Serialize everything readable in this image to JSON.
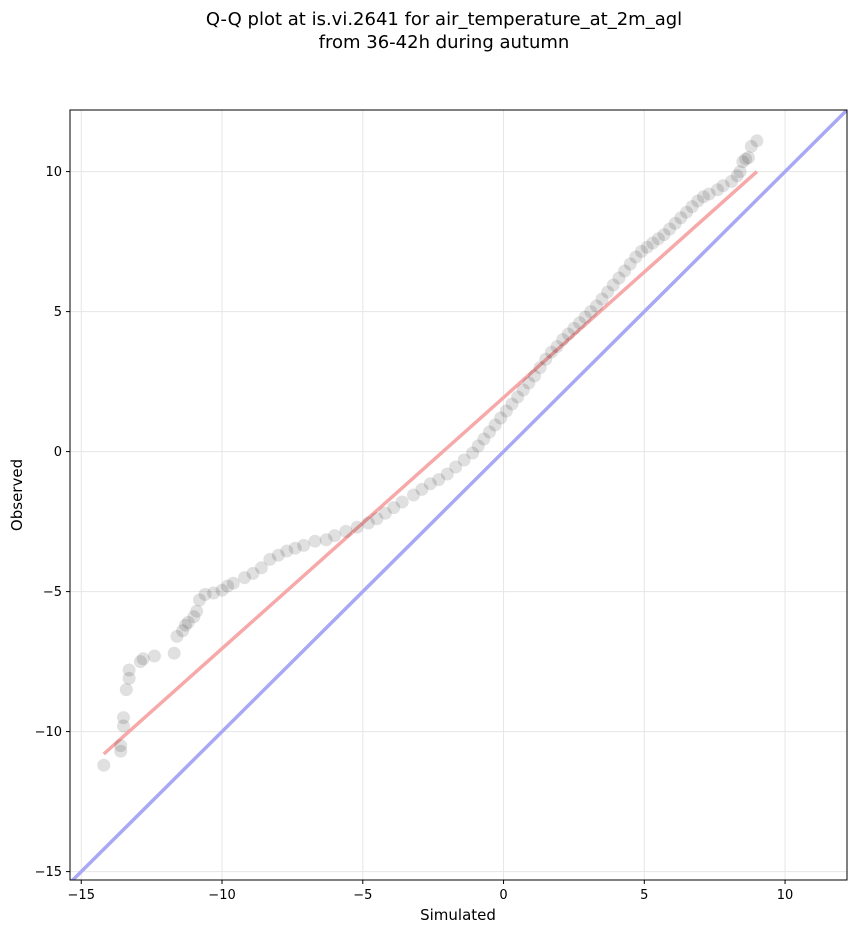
{
  "chart_data": {
    "type": "scatter",
    "title": "Q-Q plot at is.vi.2641 for air_temperature_at_2m_agl",
    "subtitle": "from 36-42h during autumn",
    "xlabel": "Simulated",
    "ylabel": "Observed",
    "xlim": [
      -15.4,
      12.2
    ],
    "ylim": [
      -15.3,
      12.2
    ],
    "xticks": [
      -15,
      -10,
      -5,
      0,
      5,
      10
    ],
    "yticks": [
      -15,
      -10,
      -5,
      0,
      5,
      10
    ],
    "xtick_labels": [
      "−15",
      "−10",
      "−5",
      "0",
      "5",
      "10"
    ],
    "ytick_labels": [
      "−15",
      "−10",
      "−5",
      "0",
      "5",
      "10"
    ],
    "grid": true,
    "point_color": "#000000",
    "point_alpha": 0.12,
    "series": [
      {
        "values": [
          [
            -14.2,
            -11.2
          ],
          [
            -13.6,
            -10.7
          ],
          [
            -13.6,
            -10.5
          ],
          [
            -13.5,
            -9.8
          ],
          [
            -13.5,
            -9.5
          ],
          [
            -13.4,
            -8.5
          ],
          [
            -13.3,
            -8.1
          ],
          [
            -13.3,
            -7.8
          ],
          [
            -12.9,
            -7.5
          ],
          [
            -12.8,
            -7.4
          ],
          [
            -12.4,
            -7.3
          ],
          [
            -11.7,
            -7.2
          ],
          [
            -11.6,
            -6.6
          ],
          [
            -11.4,
            -6.4
          ],
          [
            -11.3,
            -6.2
          ],
          [
            -11.2,
            -6.1
          ],
          [
            -11.0,
            -5.9
          ],
          [
            -10.9,
            -5.7
          ],
          [
            -10.8,
            -5.3
          ],
          [
            -10.6,
            -5.1
          ],
          [
            -10.3,
            -5.05
          ],
          [
            -10.0,
            -4.95
          ],
          [
            -9.8,
            -4.8
          ],
          [
            -9.6,
            -4.7
          ],
          [
            -9.2,
            -4.5
          ],
          [
            -8.9,
            -4.35
          ],
          [
            -8.6,
            -4.15
          ],
          [
            -8.3,
            -3.85
          ],
          [
            -8.0,
            -3.7
          ],
          [
            -7.7,
            -3.55
          ],
          [
            -7.4,
            -3.45
          ],
          [
            -7.1,
            -3.35
          ],
          [
            -6.7,
            -3.2
          ],
          [
            -6.3,
            -3.15
          ],
          [
            -6.0,
            -3.0
          ],
          [
            -5.6,
            -2.85
          ],
          [
            -5.2,
            -2.7
          ],
          [
            -4.8,
            -2.55
          ],
          [
            -4.5,
            -2.4
          ],
          [
            -4.2,
            -2.2
          ],
          [
            -3.9,
            -2.0
          ],
          [
            -3.6,
            -1.8
          ],
          [
            -3.2,
            -1.55
          ],
          [
            -2.9,
            -1.35
          ],
          [
            -2.6,
            -1.15
          ],
          [
            -2.3,
            -1.0
          ],
          [
            -2.0,
            -0.8
          ],
          [
            -1.7,
            -0.55
          ],
          [
            -1.4,
            -0.3
          ],
          [
            -1.1,
            -0.05
          ],
          [
            -0.9,
            0.2
          ],
          [
            -0.7,
            0.45
          ],
          [
            -0.5,
            0.7
          ],
          [
            -0.3,
            0.95
          ],
          [
            -0.1,
            1.2
          ],
          [
            0.1,
            1.45
          ],
          [
            0.3,
            1.7
          ],
          [
            0.5,
            1.95
          ],
          [
            0.7,
            2.2
          ],
          [
            0.9,
            2.45
          ],
          [
            1.1,
            2.7
          ],
          [
            1.3,
            3.0
          ],
          [
            1.5,
            3.3
          ],
          [
            1.7,
            3.55
          ],
          [
            1.9,
            3.75
          ],
          [
            2.1,
            4.0
          ],
          [
            2.3,
            4.2
          ],
          [
            2.5,
            4.4
          ],
          [
            2.7,
            4.6
          ],
          [
            2.9,
            4.8
          ],
          [
            3.1,
            5.0
          ],
          [
            3.3,
            5.2
          ],
          [
            3.5,
            5.45
          ],
          [
            3.7,
            5.7
          ],
          [
            3.9,
            5.95
          ],
          [
            4.1,
            6.2
          ],
          [
            4.3,
            6.45
          ],
          [
            4.5,
            6.7
          ],
          [
            4.7,
            6.95
          ],
          [
            4.9,
            7.15
          ],
          [
            5.1,
            7.3
          ],
          [
            5.3,
            7.45
          ],
          [
            5.5,
            7.6
          ],
          [
            5.7,
            7.75
          ],
          [
            5.9,
            7.95
          ],
          [
            6.1,
            8.15
          ],
          [
            6.3,
            8.35
          ],
          [
            6.5,
            8.55
          ],
          [
            6.7,
            8.75
          ],
          [
            6.9,
            8.95
          ],
          [
            7.1,
            9.1
          ],
          [
            7.3,
            9.2
          ],
          [
            7.6,
            9.35
          ],
          [
            7.8,
            9.5
          ],
          [
            8.1,
            9.65
          ],
          [
            8.3,
            9.85
          ],
          [
            8.4,
            10.0
          ],
          [
            8.5,
            10.35
          ],
          [
            8.6,
            10.45
          ],
          [
            8.7,
            10.5
          ],
          [
            8.8,
            10.9
          ],
          [
            9.0,
            11.1
          ]
        ]
      }
    ],
    "fit_line": {
      "color": "#f7a8a8",
      "from": [
        -14.2,
        -10.8
      ],
      "to": [
        9.0,
        10.0
      ]
    },
    "identity_line": {
      "color": "#a8a8f5",
      "from": [
        -16,
        -16
      ],
      "to": [
        13,
        13
      ]
    }
  }
}
